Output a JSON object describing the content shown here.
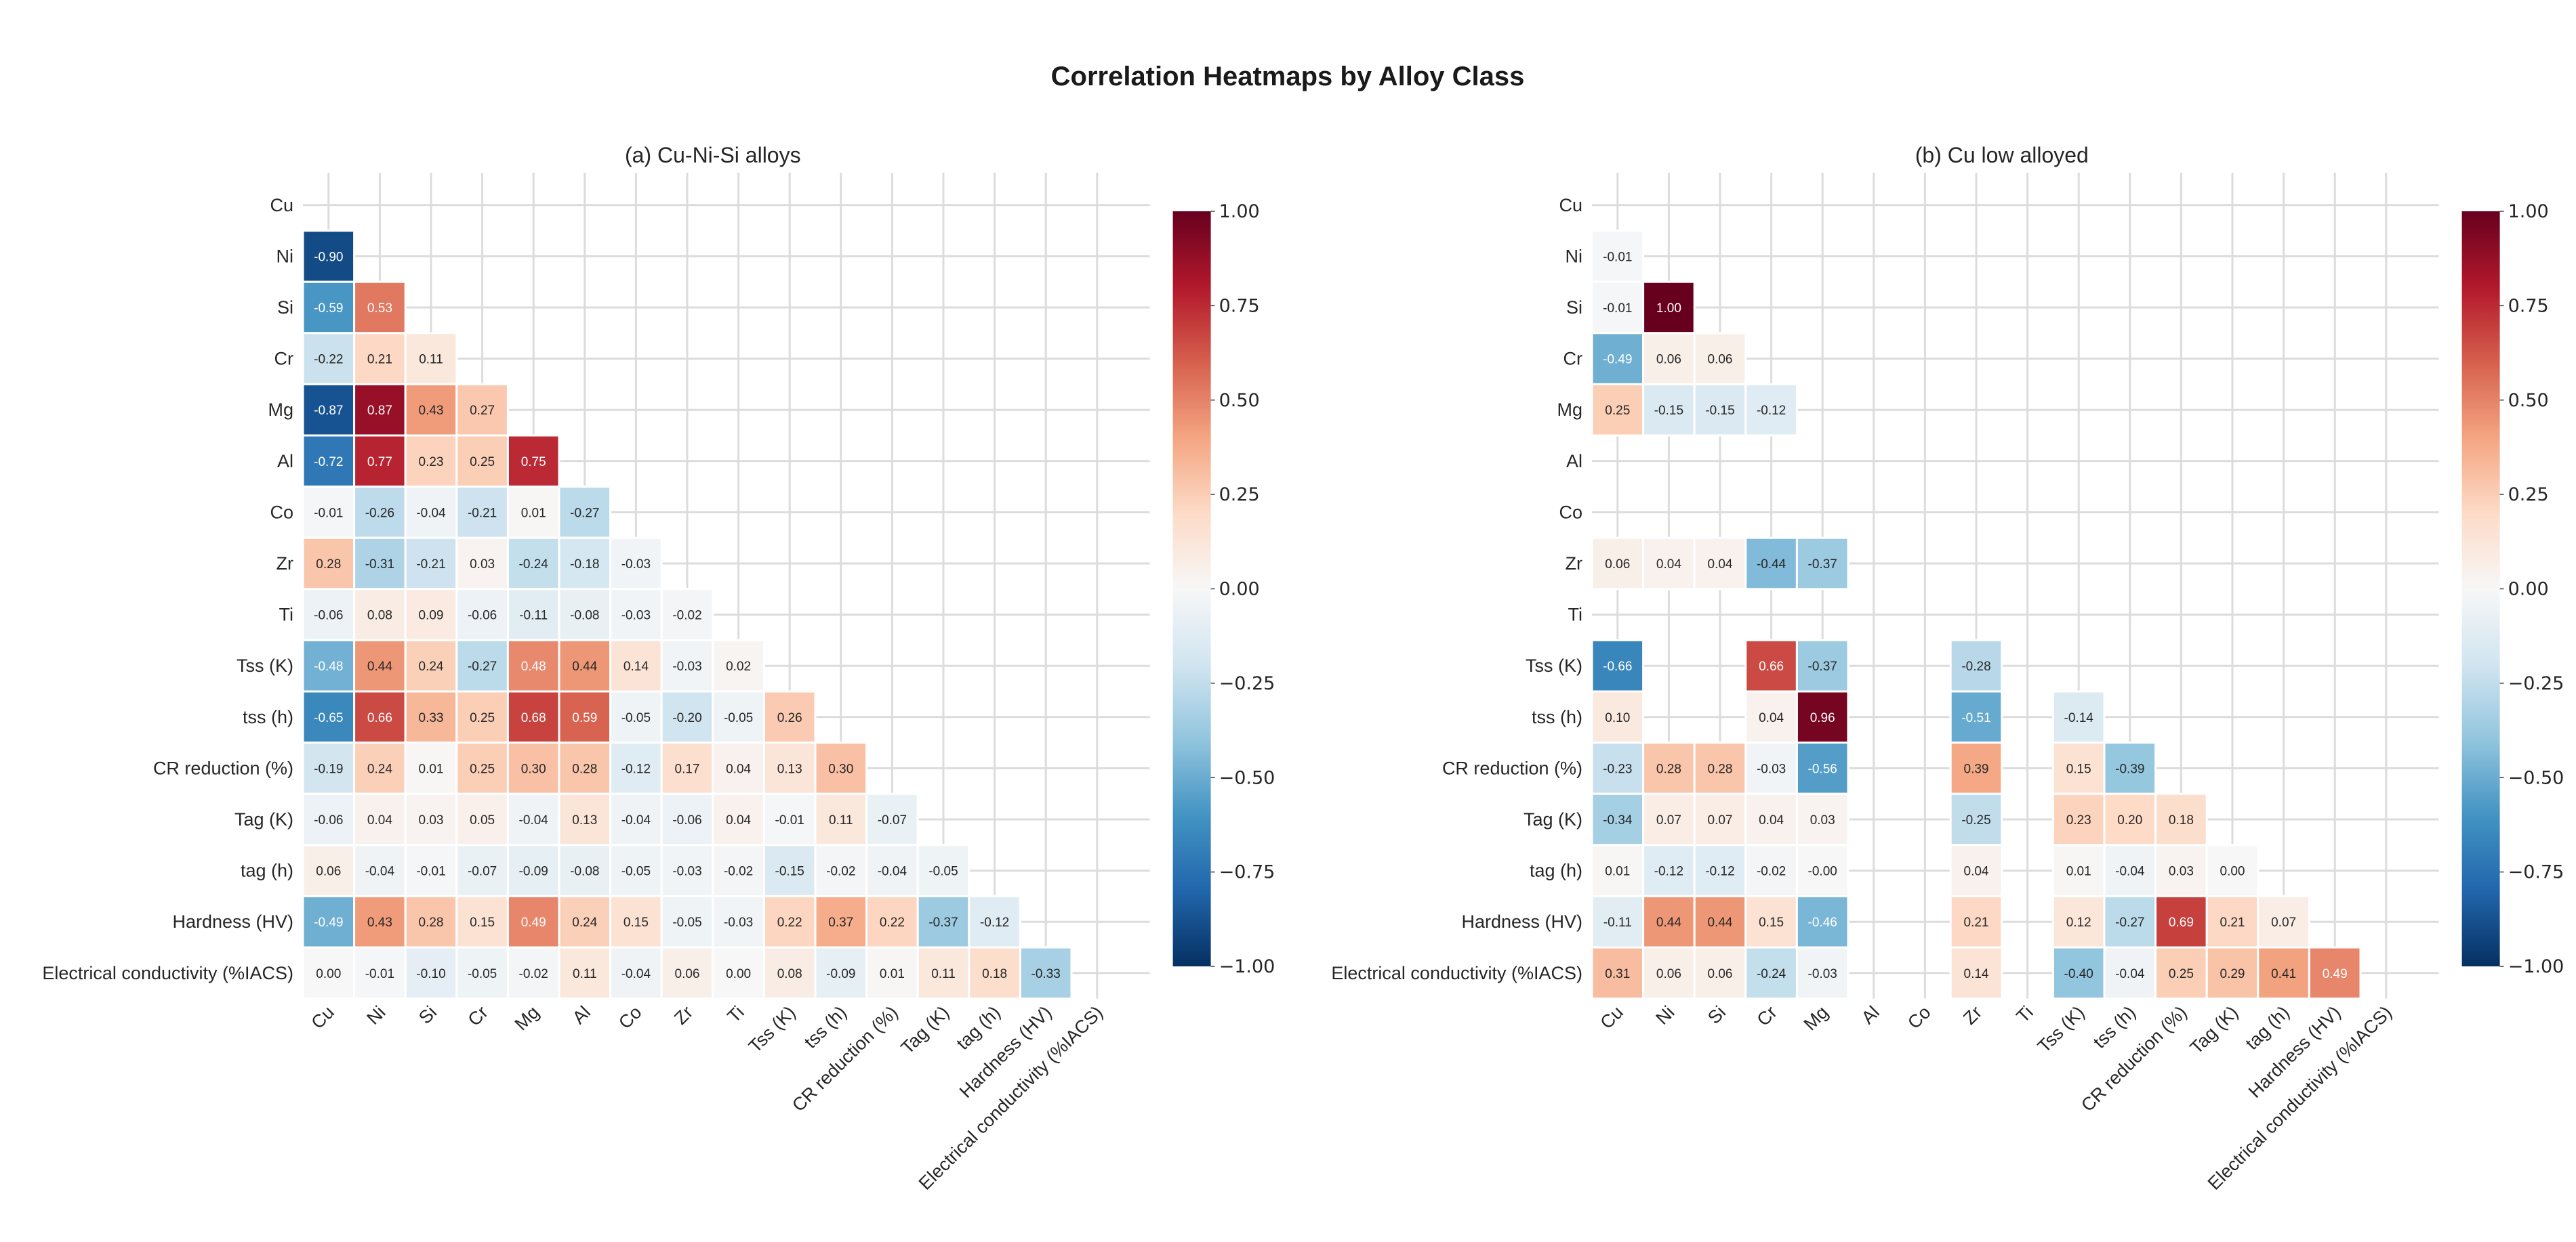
{
  "title": "Correlation Heatmaps by Alloy Class",
  "chart_data": [
    {
      "type": "heatmap",
      "title": "(a) Cu-Ni-Si alloys",
      "mask": "upper triangle incl. diagonal",
      "colormap": "RdBu_r",
      "vlim": [
        -1,
        1
      ],
      "colorbar_ticks": [
        "1.00",
        "0.75",
        "0.50",
        "0.25",
        "0.00",
        "−0.25",
        "−0.50",
        "−0.75",
        "−1.00"
      ],
      "labels": [
        "Cu",
        "Ni",
        "Si",
        "Cr",
        "Mg",
        "Al",
        "Co",
        "Zr",
        "Ti",
        "Tss (K)",
        "tss (h)",
        "CR reduction (%)",
        "Tag (K)",
        "tag (h)",
        "Hardness (HV)",
        "Electrical conductivity (%IACS)"
      ],
      "rows": [
        [],
        [
          -0.9
        ],
        [
          -0.59,
          0.53
        ],
        [
          -0.22,
          0.21,
          0.11
        ],
        [
          -0.87,
          0.87,
          0.43,
          0.27
        ],
        [
          -0.72,
          0.77,
          0.23,
          0.25,
          0.75
        ],
        [
          -0.01,
          -0.26,
          -0.04,
          -0.21,
          0.01,
          -0.27
        ],
        [
          0.28,
          -0.31,
          -0.21,
          0.03,
          -0.24,
          -0.18,
          -0.03
        ],
        [
          -0.06,
          0.08,
          0.09,
          -0.06,
          -0.11,
          -0.08,
          -0.03,
          -0.02
        ],
        [
          -0.48,
          0.44,
          0.24,
          -0.27,
          0.48,
          0.44,
          0.14,
          -0.03,
          0.02
        ],
        [
          -0.65,
          0.66,
          0.33,
          0.25,
          0.68,
          0.59,
          -0.05,
          -0.2,
          -0.05,
          0.26
        ],
        [
          -0.19,
          0.24,
          0.01,
          0.25,
          0.3,
          0.28,
          -0.12,
          0.17,
          0.04,
          0.13,
          0.3
        ],
        [
          -0.06,
          0.04,
          0.03,
          0.05,
          -0.04,
          0.13,
          -0.04,
          -0.06,
          0.04,
          -0.01,
          0.11,
          -0.07
        ],
        [
          0.06,
          -0.04,
          -0.01,
          -0.07,
          -0.09,
          -0.08,
          -0.05,
          -0.03,
          -0.02,
          -0.15,
          -0.02,
          -0.04,
          -0.05
        ],
        [
          -0.49,
          0.43,
          0.28,
          0.15,
          0.49,
          0.24,
          0.15,
          -0.05,
          -0.03,
          0.22,
          0.37,
          0.22,
          -0.37,
          -0.12
        ],
        [
          0.0,
          -0.01,
          -0.1,
          -0.05,
          -0.02,
          0.11,
          -0.04,
          0.06,
          0.0,
          0.08,
          -0.09,
          0.01,
          0.11,
          0.18,
          -0.33
        ]
      ]
    },
    {
      "type": "heatmap",
      "title": "(b) Cu low alloyed",
      "mask": "upper triangle incl. diagonal",
      "colormap": "RdBu_r",
      "vlim": [
        -1,
        1
      ],
      "colorbar_ticks": [
        "1.00",
        "0.75",
        "0.50",
        "0.25",
        "0.00",
        "−0.25",
        "−0.50",
        "−0.75",
        "−1.00"
      ],
      "labels": [
        "Cu",
        "Ni",
        "Si",
        "Cr",
        "Mg",
        "Al",
        "Co",
        "Zr",
        "Ti",
        "Tss (K)",
        "tss (h)",
        "CR reduction (%)",
        "Tag (K)",
        "tag (h)",
        "Hardness (HV)",
        "Electrical conductivity (%IACS)"
      ],
      "rows": [
        [],
        [
          -0.01
        ],
        [
          -0.01,
          1.0
        ],
        [
          -0.49,
          0.06,
          0.06
        ],
        [
          0.25,
          -0.15,
          -0.15,
          -0.12
        ],
        [
          null,
          null,
          null,
          null,
          null
        ],
        [
          null,
          null,
          null,
          null,
          null,
          null
        ],
        [
          0.06,
          0.04,
          0.04,
          -0.44,
          -0.37,
          null,
          null
        ],
        [
          null,
          null,
          null,
          null,
          null,
          null,
          null,
          null
        ],
        [
          -0.66,
          null,
          null,
          0.66,
          -0.37,
          null,
          null,
          -0.28,
          null
        ],
        [
          0.1,
          null,
          null,
          0.04,
          0.96,
          null,
          null,
          -0.51,
          null,
          -0.14
        ],
        [
          -0.23,
          0.28,
          0.28,
          -0.03,
          -0.56,
          null,
          null,
          0.39,
          null,
          0.15,
          -0.39
        ],
        [
          -0.34,
          0.07,
          0.07,
          0.04,
          0.03,
          null,
          null,
          -0.25,
          null,
          0.23,
          0.2,
          0.18
        ],
        [
          0.01,
          -0.12,
          -0.12,
          -0.02,
          -0.0,
          null,
          null,
          0.04,
          null,
          0.01,
          -0.04,
          0.03,
          0.0
        ],
        [
          -0.11,
          0.44,
          0.44,
          0.15,
          -0.46,
          null,
          null,
          0.21,
          null,
          0.12,
          -0.27,
          0.69,
          0.21,
          0.07
        ],
        [
          0.31,
          0.06,
          0.06,
          -0.24,
          -0.03,
          null,
          null,
          0.14,
          null,
          -0.4,
          -0.04,
          0.25,
          0.29,
          0.41,
          0.49
        ]
      ]
    }
  ]
}
